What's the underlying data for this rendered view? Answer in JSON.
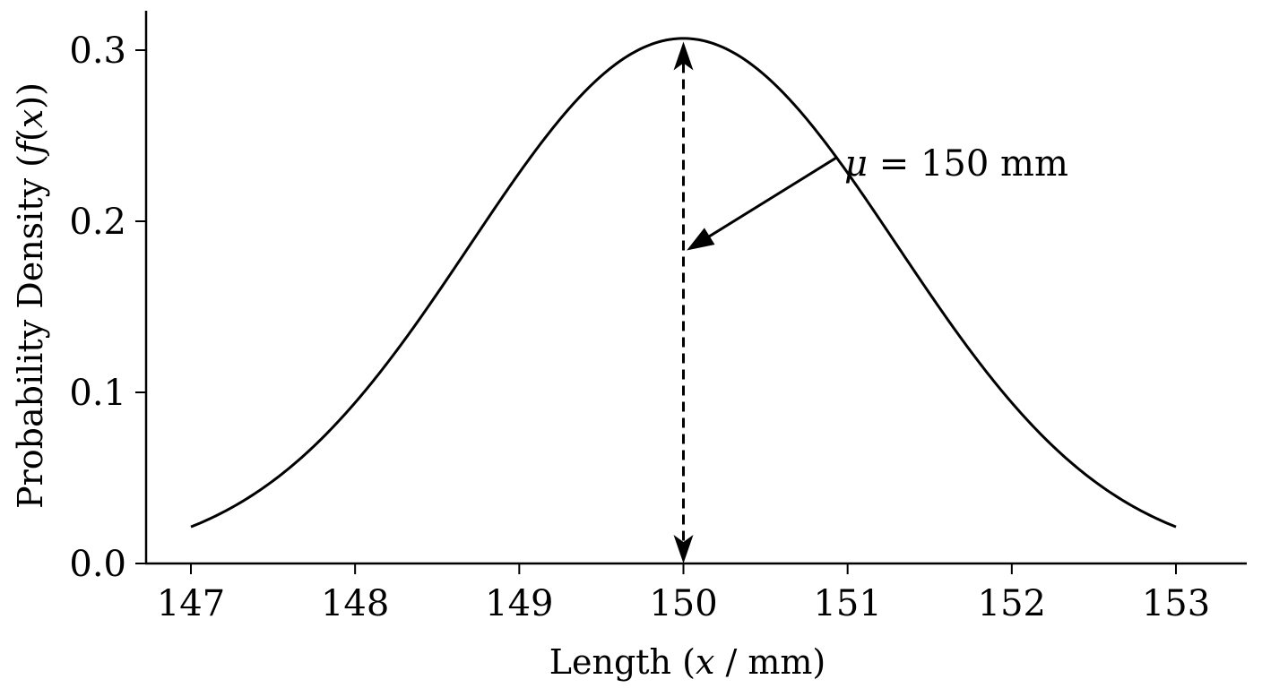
{
  "chart_data": {
    "type": "line",
    "xlabel_parts": [
      "Length (",
      "x",
      " / mm)"
    ],
    "ylabel_parts": [
      "Probability Density (",
      "f",
      "(",
      "x",
      "))"
    ],
    "xlim": [
      146.73,
      153.42
    ],
    "ylim": [
      0.0,
      0.3
    ],
    "xticks": [
      147,
      148,
      149,
      150,
      151,
      152,
      153
    ],
    "yticks": [
      0.0,
      0.1,
      0.2,
      0.3
    ],
    "ytick_labels": [
      "0.0",
      "0.1",
      "0.2",
      "0.3"
    ],
    "series": [
      {
        "distribution": "normal",
        "mean": 150,
        "std": 1.3,
        "x_range": [
          147,
          153
        ],
        "color": "#000000"
      }
    ],
    "grid": false,
    "annotations": [
      {
        "type": "double-arrow-dashed",
        "x": 150,
        "y_from": 0.0,
        "y_to": 0.305
      },
      {
        "type": "arrow",
        "text_parts": [
          "μ",
          " = 150 mm"
        ],
        "text_position": [
          150.98,
          0.234
        ],
        "points_to": [
          150.02,
          0.183
        ]
      }
    ]
  }
}
